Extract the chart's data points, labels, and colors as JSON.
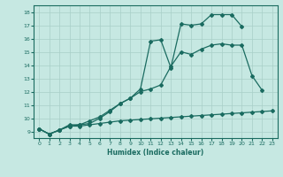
{
  "xlabel": "Humidex (Indice chaleur)",
  "bg_color": "#c6e8e2",
  "grid_color": "#a8cfc8",
  "line_color": "#1a6b60",
  "xlim": [
    -0.5,
    23.5
  ],
  "ylim": [
    8.5,
    18.5
  ],
  "xticks": [
    0,
    1,
    2,
    3,
    4,
    5,
    6,
    7,
    8,
    9,
    10,
    11,
    12,
    13,
    14,
    15,
    16,
    17,
    18,
    19,
    20,
    21,
    22,
    23
  ],
  "yticks": [
    9,
    10,
    11,
    12,
    13,
    14,
    15,
    16,
    17,
    18
  ],
  "line1_x": [
    0,
    1,
    2,
    3,
    4,
    5,
    6,
    7,
    8,
    9,
    10,
    11,
    12,
    13,
    14,
    15,
    16,
    17,
    18,
    19,
    20,
    21,
    22,
    23
  ],
  "line1_y": [
    9.2,
    8.8,
    9.1,
    9.4,
    9.4,
    9.5,
    9.6,
    9.7,
    9.8,
    9.85,
    9.9,
    9.95,
    10.0,
    10.05,
    10.1,
    10.15,
    10.2,
    10.25,
    10.3,
    10.35,
    10.4,
    10.45,
    10.5,
    10.55
  ],
  "line2_x": [
    0,
    1,
    2,
    3,
    4,
    5,
    6,
    7,
    8,
    9,
    10,
    11,
    12,
    13,
    14,
    15,
    16,
    17,
    18,
    19,
    20,
    21,
    22
  ],
  "line2_y": [
    9.2,
    8.8,
    9.1,
    9.4,
    9.5,
    9.6,
    10.0,
    10.5,
    11.1,
    11.5,
    12.0,
    12.2,
    12.5,
    13.9,
    15.0,
    14.8,
    15.2,
    15.5,
    15.6,
    15.5,
    15.5,
    13.2,
    12.1
  ],
  "line3_x": [
    0,
    1,
    2,
    3,
    4,
    5,
    6,
    7,
    8,
    9,
    10,
    11,
    12,
    13,
    14,
    15,
    16,
    17,
    18,
    19,
    20
  ],
  "line3_y": [
    9.2,
    8.8,
    9.1,
    9.5,
    9.5,
    9.8,
    10.1,
    10.6,
    11.1,
    11.5,
    12.2,
    15.8,
    15.9,
    13.8,
    17.1,
    17.0,
    17.1,
    17.8,
    17.8,
    17.8,
    16.9
  ]
}
